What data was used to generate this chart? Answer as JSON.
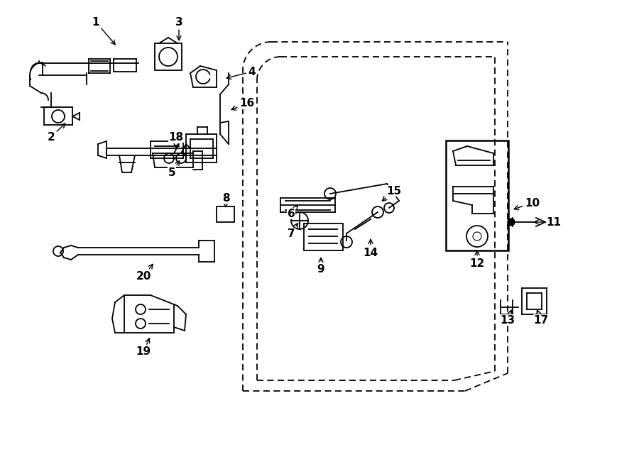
{
  "background_color": "#ffffff",
  "line_color": "#000000",
  "font_size": 11,
  "lw": 1.3,
  "fig_w": 9.0,
  "fig_h": 6.61,
  "xlim": [
    0,
    9.0
  ],
  "ylim": [
    0,
    6.61
  ],
  "labels": [
    [
      1,
      1.35,
      6.3,
      1.65,
      5.95
    ],
    [
      2,
      0.72,
      4.68,
      0.95,
      4.9
    ],
    [
      3,
      2.52,
      6.3,
      2.52,
      6.0
    ],
    [
      4,
      3.55,
      5.6,
      3.15,
      5.5
    ],
    [
      5,
      2.42,
      4.18,
      2.55,
      4.38
    ],
    [
      6,
      4.1,
      3.6,
      4.22,
      3.75
    ],
    [
      7,
      4.1,
      3.32,
      4.22,
      3.5
    ],
    [
      8,
      3.18,
      3.82,
      3.18,
      3.65
    ],
    [
      9,
      4.52,
      2.82,
      4.52,
      3.02
    ],
    [
      10,
      7.5,
      3.75,
      7.2,
      3.65
    ],
    [
      11,
      7.8,
      3.48,
      7.48,
      3.48
    ],
    [
      12,
      6.72,
      2.9,
      6.72,
      3.12
    ],
    [
      13,
      7.15,
      2.1,
      7.22,
      2.28
    ],
    [
      14,
      5.22,
      3.05,
      5.22,
      3.28
    ],
    [
      15,
      5.55,
      3.92,
      5.35,
      3.75
    ],
    [
      16,
      3.48,
      5.15,
      3.22,
      5.05
    ],
    [
      17,
      7.62,
      2.1,
      7.55,
      2.28
    ],
    [
      18,
      2.48,
      4.68,
      2.48,
      4.48
    ],
    [
      19,
      2.02,
      1.65,
      2.12,
      1.88
    ],
    [
      20,
      2.02,
      2.72,
      2.18,
      2.92
    ]
  ]
}
